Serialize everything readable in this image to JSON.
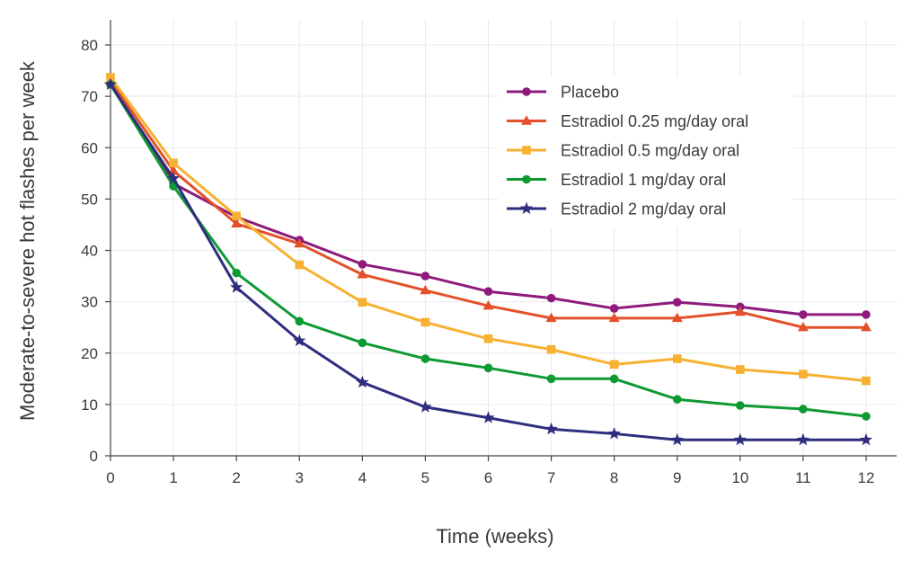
{
  "chart_data": {
    "type": "line",
    "title": "",
    "xlabel": "Time (weeks)",
    "ylabel": "Moderate-to-severe hot flashes per week",
    "x": [
      0,
      1,
      2,
      3,
      4,
      5,
      6,
      7,
      8,
      9,
      10,
      11,
      12
    ],
    "xlim": [
      0,
      12
    ],
    "ylim": [
      0,
      80
    ],
    "xticks": [
      0,
      1,
      2,
      3,
      4,
      5,
      6,
      7,
      8,
      9,
      10,
      11,
      12
    ],
    "yticks": [
      0,
      10,
      20,
      30,
      40,
      50,
      60,
      70,
      80
    ],
    "grid": true,
    "legend_position": "top-right",
    "series": [
      {
        "name": "Placebo",
        "color": "#8e1b7c",
        "marker": "circle",
        "values": [
          72.5,
          53,
          46.5,
          42,
          37.3,
          35,
          32,
          30.7,
          28.7,
          29.9,
          29,
          27.5,
          27.5
        ]
      },
      {
        "name": "Estradiol 0.25 mg/day oral",
        "color": "#e3502a",
        "marker": "triangle",
        "values": [
          73,
          55.5,
          45.2,
          41.3,
          35.3,
          32.2,
          29.2,
          26.8,
          26.8,
          26.8,
          28,
          25,
          25
        ]
      },
      {
        "name": "Estradiol 0.5 mg/day oral",
        "color": "#f7b132",
        "marker": "square",
        "values": [
          73.7,
          57,
          46.7,
          37.2,
          29.9,
          26,
          22.8,
          20.7,
          17.8,
          18.9,
          16.8,
          15.9,
          14.6
        ]
      },
      {
        "name": "Estradiol 1 mg/day oral",
        "color": "#0e9a32",
        "marker": "circle",
        "values": [
          72.3,
          52.5,
          35.6,
          26.2,
          22,
          18.9,
          17.1,
          15,
          15,
          11,
          9.8,
          9.1,
          7.7
        ]
      },
      {
        "name": "Estradiol 2 mg/day oral",
        "color": "#2f2d7e",
        "marker": "star",
        "values": [
          72.3,
          54,
          32.8,
          22.4,
          14.3,
          9.5,
          7.4,
          5.2,
          4.3,
          3.1,
          3.1,
          3.1,
          3.1
        ]
      }
    ]
  }
}
